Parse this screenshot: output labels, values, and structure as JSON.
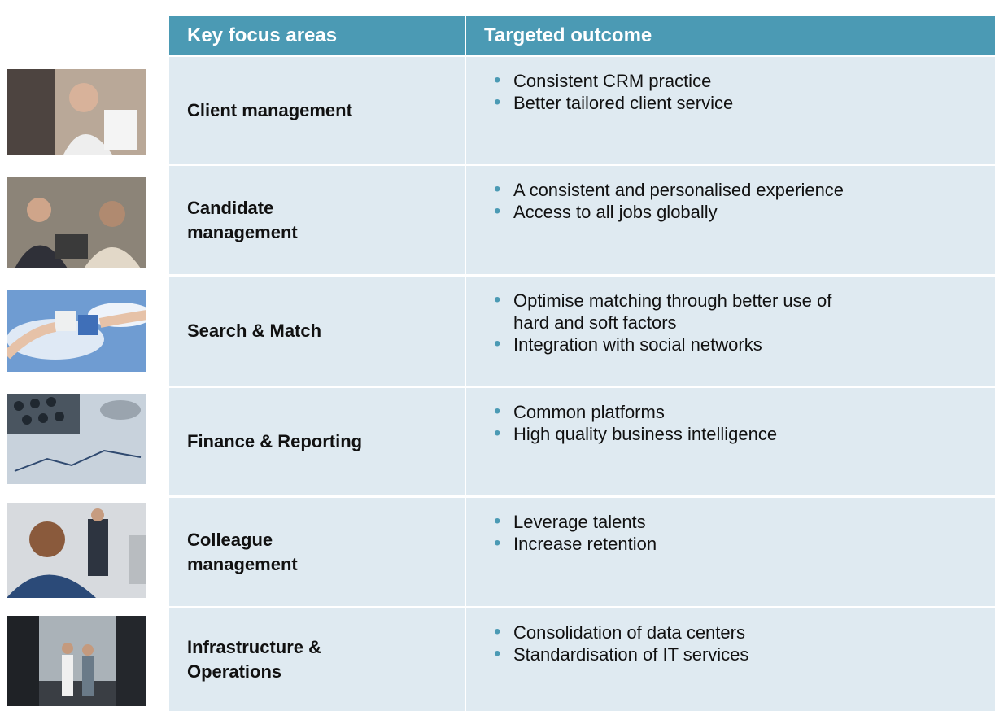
{
  "table": {
    "header": [
      "Key focus areas",
      "Targeted outcome"
    ],
    "rows": [
      {
        "area": [
          "Client management"
        ],
        "outcomes": [
          [
            "Consistent CRM practice"
          ],
          [
            "Better tailored client service"
          ]
        ]
      },
      {
        "area": [
          "Candidate",
          "management"
        ],
        "outcomes": [
          [
            "A consistent and personalised experience"
          ],
          [
            "Access to all jobs globally"
          ]
        ]
      },
      {
        "area": [
          "Search & Match"
        ],
        "outcomes": [
          [
            "Optimise matching through better use of",
            "hard and soft factors"
          ],
          [
            "Integration with social networks"
          ]
        ]
      },
      {
        "area": [
          "Finance & Reporting"
        ],
        "outcomes": [
          [
            "Common platforms"
          ],
          [
            "High quality business intelligence"
          ]
        ]
      },
      {
        "area": [
          "Colleague",
          "management"
        ],
        "outcomes": [
          [
            "Leverage talents"
          ],
          [
            "Increase retention"
          ]
        ]
      },
      {
        "area": [
          "Infrastructure &",
          "Operations"
        ],
        "outcomes": [
          [
            "Consolidation of data centers"
          ],
          [
            "Standardisation of IT services"
          ]
        ]
      }
    ]
  }
}
